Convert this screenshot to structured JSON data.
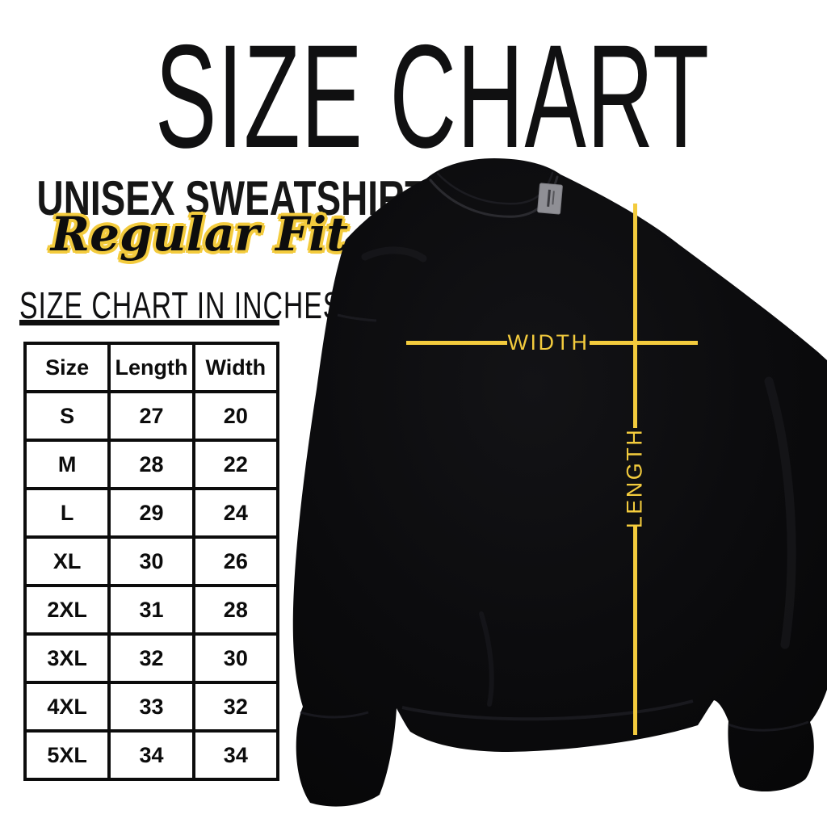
{
  "title": "SIZE CHART",
  "product": {
    "name": "UNISEX SWEATSHIRT",
    "fit": "Regular Fit"
  },
  "table_heading": "SIZE CHART IN INCHES",
  "chart_data": {
    "type": "table",
    "title": "SIZE CHART IN INCHES",
    "units": "inches",
    "columns": [
      "Size",
      "Length",
      "Width"
    ],
    "rows": [
      [
        "S",
        "27",
        "20"
      ],
      [
        "M",
        "28",
        "22"
      ],
      [
        "L",
        "29",
        "24"
      ],
      [
        "XL",
        "30",
        "26"
      ],
      [
        "2XL",
        "31",
        "28"
      ],
      [
        "3XL",
        "32",
        "30"
      ],
      [
        "4XL",
        "33",
        "32"
      ],
      [
        "5XL",
        "34",
        "34"
      ]
    ]
  },
  "measurement_diagram": {
    "width_label": "WIDTH",
    "length_label": "LENGTH"
  },
  "colors": {
    "accent_yellow": "#F3CB3D",
    "ink_black": "#0e0e0f",
    "sweatshirt_black": "#0a0a0b",
    "neck_tag_gray": "#8f8f95",
    "background": "#ffffff"
  }
}
